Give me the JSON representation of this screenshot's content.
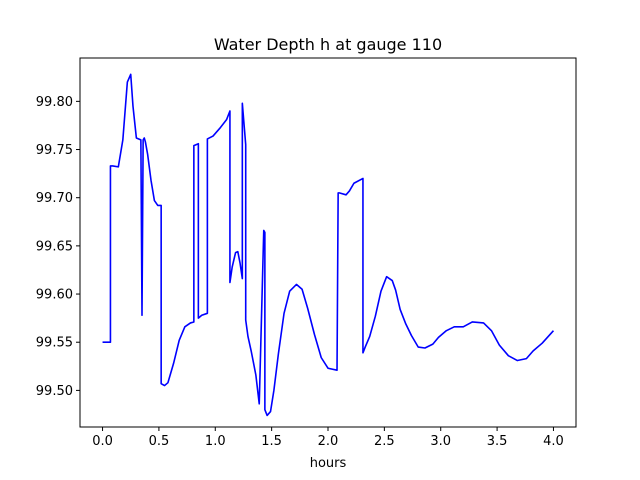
{
  "chart_data": {
    "type": "line",
    "title": "Water Depth h at gauge 110",
    "xlabel": "hours",
    "ylabel": "",
    "xlim": [
      -0.2,
      4.2
    ],
    "ylim": [
      99.462,
      99.845
    ],
    "x_ticks": [
      0.0,
      0.5,
      1.0,
      1.5,
      2.0,
      2.5,
      3.0,
      3.5,
      4.0
    ],
    "x_tick_labels": [
      "0.0",
      "0.5",
      "1.0",
      "1.5",
      "2.0",
      "2.5",
      "3.0",
      "3.5",
      "4.0"
    ],
    "y_ticks": [
      99.5,
      99.55,
      99.6,
      99.65,
      99.7,
      99.75,
      99.8
    ],
    "y_tick_labels": [
      "99.50",
      "99.55",
      "99.60",
      "99.65",
      "99.70",
      "99.75",
      "99.80"
    ],
    "grid": false,
    "legend": "none",
    "series": [
      {
        "color": "#0000ff",
        "x": [
          0.0,
          0.07,
          0.07,
          0.09,
          0.14,
          0.18,
          0.22,
          0.25,
          0.27,
          0.3,
          0.34,
          0.35,
          0.36,
          0.37,
          0.38,
          0.4,
          0.43,
          0.46,
          0.49,
          0.52,
          0.52,
          0.55,
          0.58,
          0.63,
          0.68,
          0.73,
          0.78,
          0.81,
          0.81,
          0.85,
          0.85,
          0.88,
          0.93,
          0.93,
          0.98,
          1.04,
          1.1,
          1.13,
          1.13,
          1.15,
          1.18,
          1.2,
          1.22,
          1.24,
          1.24,
          1.27,
          1.27,
          1.29,
          1.32,
          1.36,
          1.39,
          1.43,
          1.44,
          1.44,
          1.46,
          1.49,
          1.52,
          1.56,
          1.61,
          1.66,
          1.72,
          1.77,
          1.82,
          1.88,
          1.94,
          2.0,
          2.08,
          2.09,
          2.1,
          2.16,
          2.19,
          2.23,
          2.31,
          2.31,
          2.33,
          2.37,
          2.42,
          2.47,
          2.52,
          2.57,
          2.6,
          2.64,
          2.69,
          2.74,
          2.8,
          2.86,
          2.93,
          2.98,
          3.05,
          3.12,
          3.2,
          3.28,
          3.38,
          3.45,
          3.52,
          3.6,
          3.68,
          3.76,
          3.82,
          3.9,
          4.0
        ],
        "values": [
          99.55,
          99.55,
          99.733,
          99.733,
          99.732,
          99.76,
          99.82,
          99.828,
          99.795,
          99.762,
          99.76,
          99.578,
          99.76,
          99.762,
          99.758,
          99.745,
          99.718,
          99.697,
          99.692,
          99.692,
          99.507,
          99.505,
          99.508,
          99.528,
          99.552,
          99.566,
          99.57,
          99.571,
          99.754,
          99.756,
          99.575,
          99.578,
          99.58,
          99.761,
          99.764,
          99.772,
          99.781,
          99.79,
          99.612,
          99.628,
          99.643,
          99.644,
          99.632,
          99.616,
          99.798,
          99.755,
          99.573,
          99.556,
          99.54,
          99.516,
          99.486,
          99.666,
          99.664,
          99.48,
          99.474,
          99.478,
          99.5,
          99.538,
          99.58,
          99.603,
          99.61,
          99.605,
          99.585,
          99.558,
          99.534,
          99.523,
          99.521,
          99.705,
          99.705,
          99.703,
          99.707,
          99.715,
          99.72,
          99.539,
          99.545,
          99.556,
          99.577,
          99.603,
          99.618,
          99.614,
          99.604,
          99.584,
          99.569,
          99.557,
          99.545,
          99.544,
          99.548,
          99.555,
          99.562,
          99.566,
          99.566,
          99.571,
          99.57,
          99.562,
          99.547,
          99.536,
          99.531,
          99.533,
          99.541,
          99.549,
          99.562
        ]
      }
    ]
  }
}
